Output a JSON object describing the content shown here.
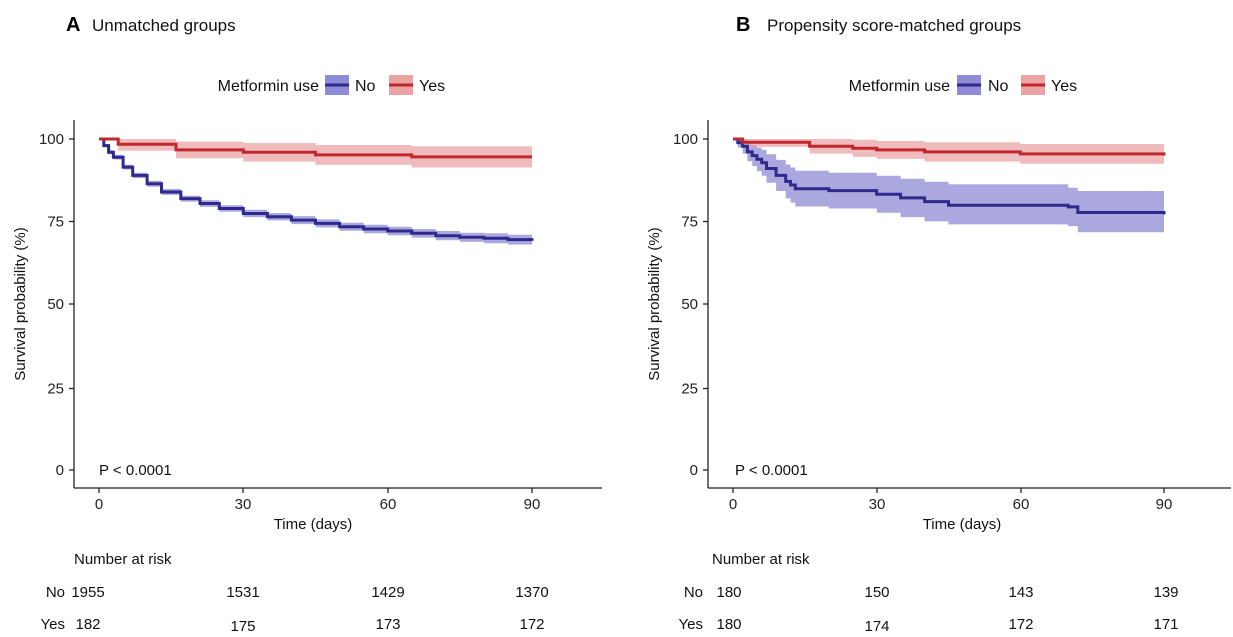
{
  "colors": {
    "no": "#2E2A8C",
    "yes": "#C0282D",
    "no_band": "#8F8BD6",
    "yes_band": "#EBA4A6"
  },
  "chart_data": [
    {
      "type": "line",
      "panel_letter": "A",
      "title": "Unmatched groups",
      "legend_title": "Metformin use",
      "legend_position": "top",
      "xlabel": "Time (days)",
      "ylabel": "Survival probability (%)",
      "xlim": [
        0,
        90
      ],
      "ylim": [
        0,
        100
      ],
      "x_ticks": [
        "0",
        "30",
        "60",
        "90"
      ],
      "y_ticks": [
        "0",
        "25",
        "50",
        "75",
        "100"
      ],
      "grid": false,
      "annotation": "P < 0.0001",
      "series": [
        {
          "name": "No",
          "x": [
            0,
            1,
            2,
            3,
            5,
            7,
            10,
            13,
            17,
            21,
            25,
            30,
            35,
            40,
            45,
            50,
            55,
            60,
            65,
            70,
            75,
            80,
            85,
            90
          ],
          "y": [
            100,
            98,
            96,
            94.5,
            91.5,
            89,
            86.5,
            84,
            82,
            80.5,
            79,
            77.5,
            76.5,
            75.5,
            74.5,
            73.5,
            72.8,
            72.2,
            71.5,
            70.8,
            70.3,
            70,
            69.6,
            69.2
          ],
          "ci_lower": [
            100,
            97.5,
            95.4,
            93.8,
            90.8,
            88.2,
            85.6,
            83.1,
            81.1,
            79.5,
            78,
            76.4,
            75.4,
            74.3,
            73.3,
            72.3,
            71.5,
            70.9,
            70.2,
            69.4,
            68.9,
            68.5,
            68.1,
            67.7
          ],
          "ci_upper": [
            100,
            98.5,
            96.6,
            95.2,
            92.2,
            89.8,
            87.4,
            84.9,
            82.9,
            81.5,
            80,
            78.6,
            77.6,
            76.7,
            75.7,
            74.7,
            74.1,
            73.5,
            72.8,
            72.2,
            71.7,
            71.5,
            71.1,
            70.7
          ]
        },
        {
          "name": "Yes",
          "x": [
            0,
            3,
            4,
            15,
            16,
            30,
            45,
            65,
            90
          ],
          "y": [
            100,
            100,
            98.4,
            98.4,
            96.7,
            96,
            95.2,
            94.6,
            94.6
          ],
          "ci_lower": [
            100,
            100,
            96.5,
            96.5,
            94.2,
            93.2,
            92.2,
            91.4,
            91.4
          ],
          "ci_upper": [
            100,
            100,
            100,
            100,
            99.2,
            98.8,
            98.2,
            97.8,
            97.8
          ]
        }
      ],
      "risk_table": {
        "header": "Number at risk",
        "times": [
          0,
          30,
          60,
          90
        ],
        "rows": [
          {
            "label": "No",
            "values": [
              "1955",
              "1531",
              "1429",
              "1370"
            ]
          },
          {
            "label": "Yes",
            "values": [
              "182",
              "175",
              "173",
              "172"
            ]
          }
        ]
      }
    },
    {
      "type": "line",
      "panel_letter": "B",
      "title": "Propensity score-matched groups",
      "legend_title": "Metformin use",
      "legend_position": "top",
      "xlabel": "Time (days)",
      "ylabel": "Survival probability (%)",
      "xlim": [
        0,
        90
      ],
      "ylim": [
        0,
        100
      ],
      "x_ticks": [
        "0",
        "30",
        "60",
        "90"
      ],
      "y_ticks": [
        "0",
        "25",
        "50",
        "75",
        "100"
      ],
      "grid": false,
      "annotation": "P < 0.0001",
      "series": [
        {
          "name": "No",
          "x": [
            0,
            1,
            2,
            3,
            4,
            5,
            6,
            7,
            9,
            11,
            12,
            13,
            20,
            30,
            35,
            40,
            45,
            70,
            72,
            90
          ],
          "y": [
            100,
            98.9,
            97.8,
            96.1,
            95,
            93.9,
            92.8,
            91.1,
            89,
            87.2,
            86.1,
            85,
            84.4,
            83.3,
            82.2,
            81.1,
            80,
            79.5,
            77.8,
            77.2
          ],
          "ci_lower": [
            100,
            97.4,
            95.6,
            93.3,
            91.8,
            90.3,
            88.9,
            86.8,
            84.3,
            82.1,
            80.8,
            79.6,
            79,
            77.7,
            76.4,
            75.1,
            74.2,
            73.7,
            71.8,
            71.1
          ],
          "ci_upper": [
            100,
            100,
            99.9,
            98.8,
            98.2,
            97.4,
            96.7,
            95.4,
            93.7,
            92.3,
            91.4,
            90.4,
            89.8,
            88.9,
            88,
            87.1,
            86.3,
            85.3,
            84.3,
            83.8
          ]
        },
        {
          "name": "Yes",
          "x": [
            0,
            1,
            2,
            15,
            16,
            25,
            30,
            40,
            60,
            90
          ],
          "y": [
            100,
            100,
            99,
            99,
            97.8,
            97.2,
            96.7,
            96.1,
            95.5,
            95
          ],
          "ci_lower": [
            100,
            100,
            97.6,
            97.6,
            95.6,
            94.6,
            94,
            93.2,
            92.5,
            91.8
          ],
          "ci_upper": [
            100,
            100,
            100,
            100,
            100,
            99.8,
            99.4,
            99,
            98.5,
            98.2
          ]
        }
      ],
      "risk_table": {
        "header": "Number at risk",
        "times": [
          0,
          30,
          60,
          90
        ],
        "rows": [
          {
            "label": "No",
            "values": [
              "180",
              "150",
              "143",
              "139"
            ]
          },
          {
            "label": "Yes",
            "values": [
              "180",
              "174",
              "172",
              "171"
            ]
          }
        ]
      }
    }
  ]
}
